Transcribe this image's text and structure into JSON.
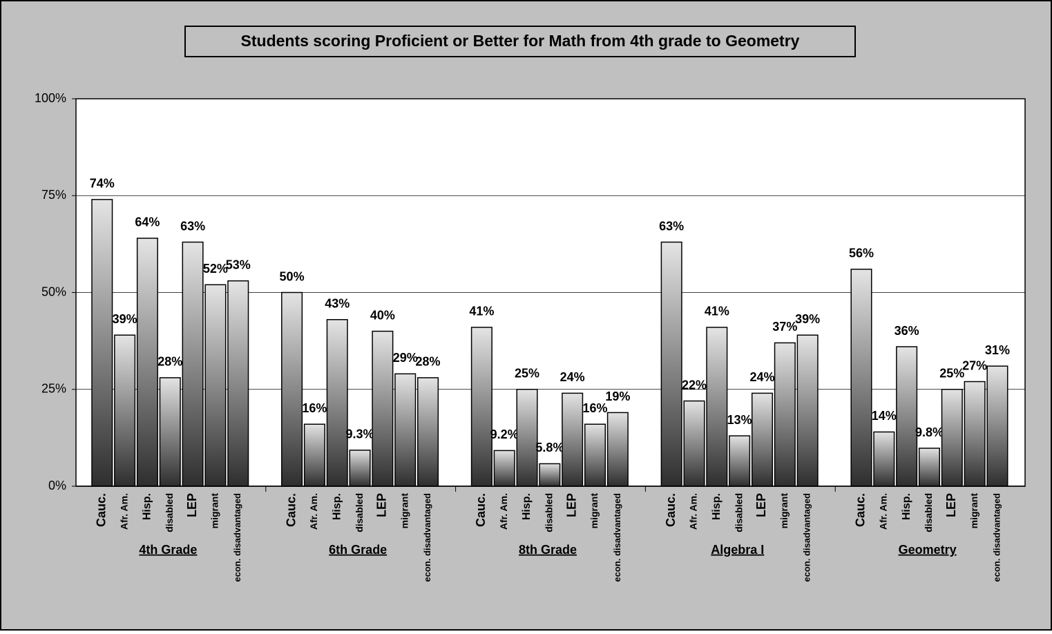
{
  "chart_data": {
    "type": "bar",
    "title": "Students scoring Proficient or Better for Math from 4th grade to Geometry",
    "ylim": [
      0,
      100
    ],
    "yticks": [
      {
        "value": 0,
        "label": "0%"
      },
      {
        "value": 25,
        "label": "25%"
      },
      {
        "value": 50,
        "label": "50%"
      },
      {
        "value": 75,
        "label": "75%"
      },
      {
        "value": 100,
        "label": "100%"
      }
    ],
    "grid": true,
    "groups": [
      {
        "name": "4th Grade",
        "categories": [
          "Cauc.",
          "Afr. Am.",
          "Hisp.",
          "disabled",
          "LEP",
          "migrant",
          "econ. disadvantaged"
        ],
        "values": [
          74,
          39,
          64,
          28,
          63,
          52,
          53
        ],
        "value_labels": [
          "74%",
          "39%",
          "64%",
          "28%",
          "63%",
          "52%",
          "53%"
        ]
      },
      {
        "name": "6th Grade",
        "categories": [
          "Cauc.",
          "Afr. Am.",
          "Hisp.",
          "disabled",
          "LEP",
          "migrant",
          "econ. disadvantaged"
        ],
        "values": [
          50,
          16,
          43,
          9.3,
          40,
          29,
          28
        ],
        "value_labels": [
          "50%",
          "16%",
          "43%",
          "9.3%",
          "40%",
          "29%",
          "28%"
        ]
      },
      {
        "name": "8th Grade",
        "categories": [
          "Cauc.",
          "Afr. Am.",
          "Hisp.",
          "disabled",
          "LEP",
          "migrant",
          "econ. disadvantaged"
        ],
        "values": [
          41,
          9.2,
          25,
          5.8,
          24,
          16,
          19
        ],
        "value_labels": [
          "41%",
          "9.2%",
          "25%",
          "5.8%",
          "24%",
          "16%",
          "19%"
        ]
      },
      {
        "name": "Algebra I",
        "categories": [
          "Cauc.",
          "Afr. Am.",
          "Hisp.",
          "disabled",
          "LEP",
          "migrant",
          "econ. disadvantaged"
        ],
        "values": [
          63,
          22,
          41,
          13,
          24,
          37,
          39
        ],
        "value_labels": [
          "63%",
          "22%",
          "41%",
          "13%",
          "24%",
          "37%",
          "39%"
        ]
      },
      {
        "name": "Geometry",
        "categories": [
          "Cauc.",
          "Afr. Am.",
          "Hisp.",
          "disabled",
          "LEP",
          "migrant",
          "econ. disadvantaged"
        ],
        "values": [
          56,
          14,
          36,
          9.8,
          25,
          27,
          31
        ],
        "value_labels": [
          "56%",
          "14%",
          "36%",
          "9.8%",
          "25%",
          "27%",
          "31%"
        ]
      }
    ]
  }
}
